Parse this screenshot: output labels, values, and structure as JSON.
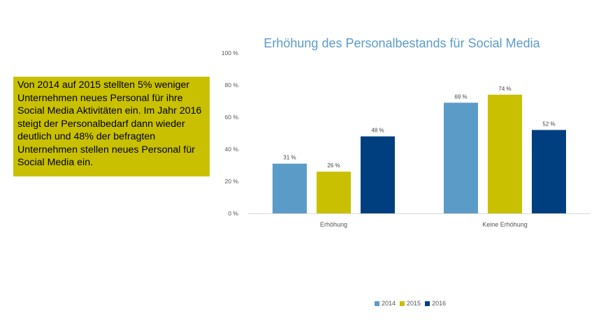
{
  "textbox": {
    "text": "Von 2014 auf 2015 stellten 5% weniger Unternehmen neues Personal für ihre Social Media Aktivitäten ein. Im Jahr 2016 steigt der Personalbedarf dann wieder deutlich und 48% der befragten Unternehmen stellen neues Personal für Social Media ein."
  },
  "colors": {
    "2014": "#5b9bc8",
    "2015": "#c8c000",
    "2016": "#003f7f",
    "textbox_bg": "#c8c000",
    "title": "#5b9bc8"
  },
  "chart_data": {
    "type": "bar",
    "title": "Erhöhung des Personalbestands für Social Media",
    "categories": [
      "Erhöhung",
      "Keine Erhöhung"
    ],
    "series": [
      {
        "name": "2014",
        "values": [
          31,
          69
        ],
        "labels": [
          "31 %",
          "69 %"
        ]
      },
      {
        "name": "2015",
        "values": [
          26,
          74
        ],
        "labels": [
          "26 %",
          "74 %"
        ]
      },
      {
        "name": "2016",
        "values": [
          48,
          52
        ],
        "labels": [
          "48 %",
          "52 %"
        ]
      }
    ],
    "ylim": [
      0,
      100
    ],
    "yticks": [
      0,
      20,
      40,
      60,
      80,
      100
    ],
    "ytick_labels": [
      "0 %",
      "20 %",
      "40 %",
      "60 %",
      "80 %",
      "100 %"
    ],
    "grid": false,
    "legend": "bottom"
  }
}
